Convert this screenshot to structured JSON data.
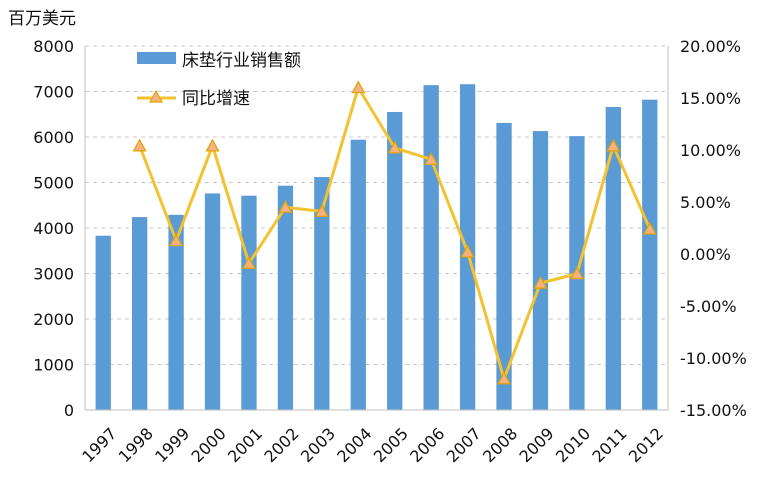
{
  "chart_data": {
    "type": "bar",
    "unit_label": "百万美元",
    "categories": [
      "1997",
      "1998",
      "1999",
      "2000",
      "2001",
      "2002",
      "2003",
      "2004",
      "2005",
      "2006",
      "2007",
      "2008",
      "2009",
      "2010",
      "2011",
      "2012"
    ],
    "series": [
      {
        "name": "床垫行业销售额",
        "type": "bar",
        "axis": "left",
        "color": "#5b9bd5",
        "values": [
          3830,
          4240,
          4290,
          4760,
          4710,
          4930,
          5120,
          5940,
          6550,
          7140,
          7160,
          6310,
          6130,
          6020,
          6660,
          6820
        ]
      },
      {
        "name": "同比增速",
        "type": "line",
        "axis": "right",
        "color": "#f2c230",
        "marker": "triangle",
        "values": [
          null,
          10.4,
          1.3,
          10.4,
          -0.9,
          4.5,
          4.1,
          16.0,
          10.2,
          9.1,
          0.2,
          -12.0,
          -2.8,
          -1.9,
          10.4,
          2.4
        ]
      }
    ],
    "left_axis": {
      "ylim": [
        0,
        8000
      ],
      "ticks": [
        "0",
        "1000",
        "2000",
        "3000",
        "4000",
        "5000",
        "6000",
        "7000",
        "8000"
      ]
    },
    "right_axis": {
      "ylim": [
        -15,
        20
      ],
      "ticks": [
        "-15.00%",
        "-10.00%",
        "-5.00%",
        "0.00%",
        "5.00%",
        "10.00%",
        "15.00%",
        "20.00%"
      ]
    },
    "grid": true,
    "legend_position": "top-left"
  }
}
